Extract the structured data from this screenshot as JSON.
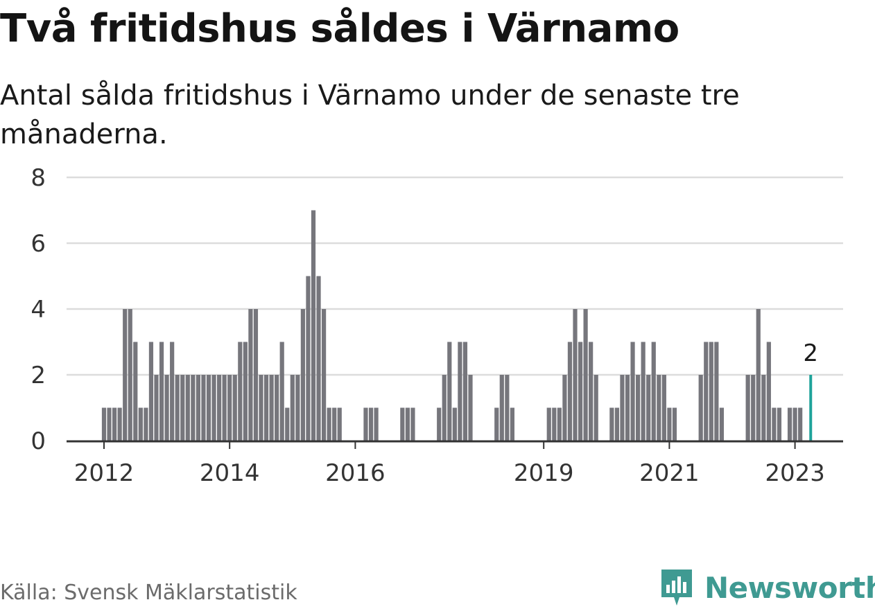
{
  "header": {
    "title": "Två fritidshus såldes i Värnamo",
    "subtitle": "Antal sålda fritidshus i Värnamo under de senaste tre månaderna."
  },
  "footer": {
    "source": "Källa: Svensk Mäklarstatistik",
    "brand": "Newsworthy",
    "brand_icon": "newsworthy-logo-icon"
  },
  "colors": {
    "bar": "#76767c",
    "highlight": "#1ea39a",
    "grid": "#dcdcdc",
    "axis": "#333333",
    "brand": "#3f9a92"
  },
  "chart_data": {
    "type": "bar",
    "ylim": [
      0,
      8
    ],
    "yticks": [
      0,
      2,
      4,
      6,
      8
    ],
    "xtick_labels": [
      {
        "label": "2012",
        "month": "2012-01"
      },
      {
        "label": "2014",
        "month": "2014-01"
      },
      {
        "label": "2016",
        "month": "2016-01"
      },
      {
        "label": "2019",
        "month": "2019-01"
      },
      {
        "label": "2021",
        "month": "2021-01"
      },
      {
        "label": "2023",
        "month": "2023-01"
      }
    ],
    "highlight_label": "2",
    "grid": true,
    "series": [
      {
        "values": [
          {
            "month": "2012-01",
            "value": 1
          },
          {
            "month": "2012-02",
            "value": 1
          },
          {
            "month": "2012-03",
            "value": 1
          },
          {
            "month": "2012-04",
            "value": 1
          },
          {
            "month": "2012-05",
            "value": 4
          },
          {
            "month": "2012-06",
            "value": 4
          },
          {
            "month": "2012-07",
            "value": 3
          },
          {
            "month": "2012-08",
            "value": 1
          },
          {
            "month": "2012-09",
            "value": 1
          },
          {
            "month": "2012-10",
            "value": 3
          },
          {
            "month": "2012-11",
            "value": 2
          },
          {
            "month": "2012-12",
            "value": 3
          },
          {
            "month": "2013-01",
            "value": 2
          },
          {
            "month": "2013-02",
            "value": 3
          },
          {
            "month": "2013-03",
            "value": 2
          },
          {
            "month": "2013-04",
            "value": 2
          },
          {
            "month": "2013-05",
            "value": 2
          },
          {
            "month": "2013-06",
            "value": 2
          },
          {
            "month": "2013-07",
            "value": 2
          },
          {
            "month": "2013-08",
            "value": 2
          },
          {
            "month": "2013-09",
            "value": 2
          },
          {
            "month": "2013-10",
            "value": 2
          },
          {
            "month": "2013-11",
            "value": 2
          },
          {
            "month": "2013-12",
            "value": 2
          },
          {
            "month": "2014-01",
            "value": 2
          },
          {
            "month": "2014-02",
            "value": 2
          },
          {
            "month": "2014-03",
            "value": 3
          },
          {
            "month": "2014-04",
            "value": 3
          },
          {
            "month": "2014-05",
            "value": 4
          },
          {
            "month": "2014-06",
            "value": 4
          },
          {
            "month": "2014-07",
            "value": 2
          },
          {
            "month": "2014-08",
            "value": 2
          },
          {
            "month": "2014-09",
            "value": 2
          },
          {
            "month": "2014-10",
            "value": 2
          },
          {
            "month": "2014-11",
            "value": 3
          },
          {
            "month": "2014-12",
            "value": 1
          },
          {
            "month": "2015-01",
            "value": 2
          },
          {
            "month": "2015-02",
            "value": 2
          },
          {
            "month": "2015-03",
            "value": 4
          },
          {
            "month": "2015-04",
            "value": 5
          },
          {
            "month": "2015-05",
            "value": 7
          },
          {
            "month": "2015-06",
            "value": 5
          },
          {
            "month": "2015-07",
            "value": 4
          },
          {
            "month": "2015-08",
            "value": 1
          },
          {
            "month": "2015-09",
            "value": 1
          },
          {
            "month": "2015-10",
            "value": 1
          },
          {
            "month": "2016-03",
            "value": 1
          },
          {
            "month": "2016-04",
            "value": 1
          },
          {
            "month": "2016-05",
            "value": 1
          },
          {
            "month": "2016-10",
            "value": 1
          },
          {
            "month": "2016-11",
            "value": 1
          },
          {
            "month": "2016-12",
            "value": 1
          },
          {
            "month": "2017-05",
            "value": 1
          },
          {
            "month": "2017-06",
            "value": 2
          },
          {
            "month": "2017-07",
            "value": 3
          },
          {
            "month": "2017-08",
            "value": 1
          },
          {
            "month": "2017-09",
            "value": 3
          },
          {
            "month": "2017-10",
            "value": 3
          },
          {
            "month": "2017-11",
            "value": 2
          },
          {
            "month": "2018-04",
            "value": 1
          },
          {
            "month": "2018-05",
            "value": 2
          },
          {
            "month": "2018-06",
            "value": 2
          },
          {
            "month": "2018-07",
            "value": 1
          },
          {
            "month": "2019-02",
            "value": 1
          },
          {
            "month": "2019-03",
            "value": 1
          },
          {
            "month": "2019-04",
            "value": 1
          },
          {
            "month": "2019-05",
            "value": 2
          },
          {
            "month": "2019-06",
            "value": 3
          },
          {
            "month": "2019-07",
            "value": 4
          },
          {
            "month": "2019-08",
            "value": 3
          },
          {
            "month": "2019-09",
            "value": 4
          },
          {
            "month": "2019-10",
            "value": 3
          },
          {
            "month": "2019-11",
            "value": 2
          },
          {
            "month": "2020-02",
            "value": 1
          },
          {
            "month": "2020-03",
            "value": 1
          },
          {
            "month": "2020-04",
            "value": 2
          },
          {
            "month": "2020-05",
            "value": 2
          },
          {
            "month": "2020-06",
            "value": 3
          },
          {
            "month": "2020-07",
            "value": 2
          },
          {
            "month": "2020-08",
            "value": 3
          },
          {
            "month": "2020-09",
            "value": 2
          },
          {
            "month": "2020-10",
            "value": 3
          },
          {
            "month": "2020-11",
            "value": 2
          },
          {
            "month": "2020-12",
            "value": 2
          },
          {
            "month": "2021-01",
            "value": 1
          },
          {
            "month": "2021-02",
            "value": 1
          },
          {
            "month": "2021-07",
            "value": 2
          },
          {
            "month": "2021-08",
            "value": 3
          },
          {
            "month": "2021-09",
            "value": 3
          },
          {
            "month": "2021-10",
            "value": 3
          },
          {
            "month": "2021-11",
            "value": 1
          },
          {
            "month": "2022-04",
            "value": 2
          },
          {
            "month": "2022-05",
            "value": 2
          },
          {
            "month": "2022-06",
            "value": 4
          },
          {
            "month": "2022-07",
            "value": 2
          },
          {
            "month": "2022-08",
            "value": 3
          },
          {
            "month": "2022-09",
            "value": 1
          },
          {
            "month": "2022-10",
            "value": 1
          },
          {
            "month": "2022-12",
            "value": 1
          },
          {
            "month": "2023-01",
            "value": 1
          },
          {
            "month": "2023-02",
            "value": 1
          },
          {
            "month": "2023-04",
            "value": 2,
            "highlight": true
          }
        ]
      }
    ]
  }
}
